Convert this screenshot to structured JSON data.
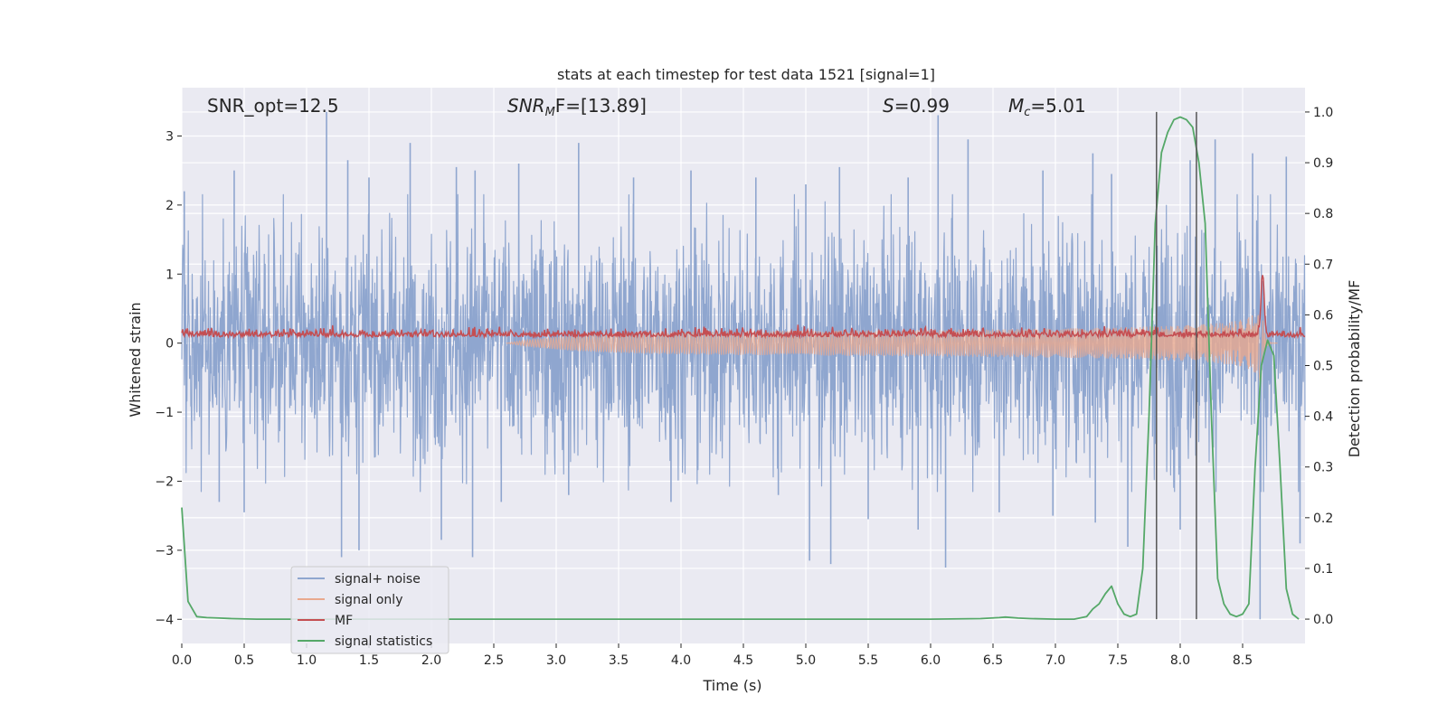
{
  "chart_data": {
    "type": "line",
    "title": "stats at each timestep for test data 1521 [signal=1]",
    "xlabel": "Time (s)",
    "ylabel": "Whitened strain",
    "ylabel_right": "Detection probability/MF",
    "xlim": [
      0,
      9.0
    ],
    "ylim": [
      -4.35,
      3.7
    ],
    "ylim_right": [
      -0.048,
      1.048
    ],
    "xticks": [
      0.0,
      0.5,
      1.0,
      1.5,
      2.0,
      2.5,
      3.0,
      3.5,
      4.0,
      4.5,
      5.0,
      5.5,
      6.0,
      6.5,
      7.0,
      7.5,
      8.0,
      8.5
    ],
    "xtick_labels": [
      "0.0",
      "0.5",
      "1.0",
      "1.5",
      "2.0",
      "2.5",
      "3.0",
      "3.5",
      "4.0",
      "4.5",
      "5.0",
      "5.5",
      "6.0",
      "6.5",
      "7.0",
      "7.5",
      "8.0",
      "8.5"
    ],
    "yticks": [
      -4,
      -3,
      -2,
      -1,
      0,
      1,
      2,
      3
    ],
    "ytick_labels": [
      "−4",
      "−3",
      "−2",
      "−1",
      "0",
      "1",
      "2",
      "3"
    ],
    "yticks_right": [
      0.0,
      0.1,
      0.2,
      0.3,
      0.4,
      0.5,
      0.6,
      0.7,
      0.8,
      0.9,
      1.0
    ],
    "ytick_labels_right": [
      "0.0",
      "0.1",
      "0.2",
      "0.3",
      "0.4",
      "0.5",
      "0.6",
      "0.7",
      "0.8",
      "0.9",
      "1.0"
    ],
    "grid": true,
    "legend_position": "lower-left",
    "annotations": {
      "snr_opt": "SNR_opt=12.5",
      "snr_mf_main": "SNR",
      "snr_mf_sub": "M",
      "snr_mf_rest": "F=[13.89]",
      "s_main": "S",
      "s_rest": "=0.99",
      "mc_main": "M",
      "mc_sub": "c",
      "mc_rest": "=5.01"
    },
    "vertical_lines_x": [
      7.81,
      8.13
    ],
    "series": [
      {
        "name": "signal+ noise",
        "color": "#8fa6cf",
        "kind": "noise",
        "axis": "left",
        "typical_amplitude": 1.0,
        "peaks": [
          [
            0.02,
            2.2
          ],
          [
            0.42,
            2.5
          ],
          [
            1.16,
            3.35
          ],
          [
            1.33,
            2.65
          ],
          [
            1.5,
            2.4
          ],
          [
            1.83,
            2.9
          ],
          [
            2.2,
            2.55
          ],
          [
            2.35,
            2.5
          ],
          [
            2.7,
            2.6
          ],
          [
            3.18,
            2.9
          ],
          [
            3.62,
            2.4
          ],
          [
            4.08,
            2.5
          ],
          [
            4.6,
            2.4
          ],
          [
            5.0,
            2.3
          ],
          [
            5.27,
            2.55
          ],
          [
            5.82,
            2.4
          ],
          [
            6.06,
            3.3
          ],
          [
            6.3,
            2.95
          ],
          [
            6.9,
            2.5
          ],
          [
            7.3,
            2.75
          ],
          [
            7.45,
            2.45
          ],
          [
            8.08,
            2.65
          ],
          [
            8.28,
            2.95
          ],
          [
            8.58,
            2.75
          ],
          [
            8.85,
            2.7
          ],
          [
            0.3,
            -2.3
          ],
          [
            0.5,
            -2.45
          ],
          [
            1.28,
            -3.1
          ],
          [
            1.42,
            -3.0
          ],
          [
            2.08,
            -2.85
          ],
          [
            2.33,
            -3.1
          ],
          [
            2.56,
            -2.3
          ],
          [
            3.1,
            -2.2
          ],
          [
            3.92,
            -2.3
          ],
          [
            4.78,
            -2.2
          ],
          [
            5.03,
            -3.15
          ],
          [
            5.2,
            -3.2
          ],
          [
            5.5,
            -2.55
          ],
          [
            5.9,
            -2.7
          ],
          [
            6.12,
            -3.25
          ],
          [
            6.55,
            -2.45
          ],
          [
            6.98,
            -2.5
          ],
          [
            7.32,
            -2.6
          ],
          [
            7.58,
            -2.95
          ],
          [
            8.0,
            -2.7
          ],
          [
            8.64,
            -4.0
          ],
          [
            8.96,
            -2.9
          ]
        ]
      },
      {
        "name": "signal only",
        "color": "#e9a98e",
        "kind": "chirp",
        "axis": "left",
        "start_x": 2.6,
        "merger_x": 8.66,
        "end_amplitude": 0.9
      },
      {
        "name": "MF",
        "color": "#c44e52",
        "kind": "matched-filter",
        "axis": "left",
        "baseline": 0.12,
        "jitter": 0.1,
        "peak_x": 8.66,
        "peak_value": 1.0
      },
      {
        "name": "signal statistics",
        "color": "#55a868",
        "kind": "line",
        "axis": "right",
        "x": [
          0.0,
          0.05,
          0.12,
          0.2,
          0.3,
          0.4,
          0.6,
          1.0,
          2.0,
          3.0,
          4.0,
          5.0,
          6.0,
          6.4,
          6.55,
          6.6,
          6.7,
          6.8,
          7.0,
          7.15,
          7.25,
          7.3,
          7.35,
          7.4,
          7.45,
          7.5,
          7.55,
          7.6,
          7.65,
          7.7,
          7.75,
          7.8,
          7.85,
          7.9,
          7.95,
          8.0,
          8.05,
          8.1,
          8.15,
          8.2,
          8.25,
          8.3,
          8.35,
          8.4,
          8.45,
          8.5,
          8.55,
          8.6,
          8.65,
          8.7,
          8.75,
          8.8,
          8.85,
          8.9,
          8.95
        ],
        "y": [
          0.22,
          0.035,
          0.005,
          0.003,
          0.002,
          0.001,
          0.0,
          0.0,
          0.0,
          0.0,
          0.0,
          0.0,
          0.0,
          0.001,
          0.003,
          0.004,
          0.002,
          0.001,
          0.0,
          0.0,
          0.005,
          0.02,
          0.03,
          0.05,
          0.065,
          0.03,
          0.01,
          0.005,
          0.01,
          0.1,
          0.4,
          0.78,
          0.92,
          0.96,
          0.985,
          0.99,
          0.985,
          0.97,
          0.9,
          0.78,
          0.4,
          0.08,
          0.03,
          0.01,
          0.005,
          0.01,
          0.03,
          0.3,
          0.5,
          0.55,
          0.52,
          0.3,
          0.06,
          0.01,
          0.0
        ]
      }
    ]
  }
}
